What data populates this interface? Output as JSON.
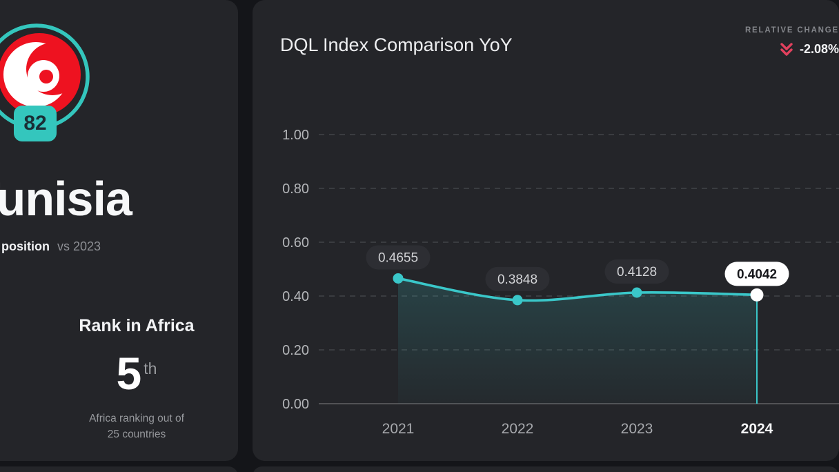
{
  "colors": {
    "page_bg": "#141519",
    "card_bg": "#242529",
    "teal_badge": "#34c6bd",
    "teal_line": "#3ac7c9",
    "red": "#ee1220",
    "crimson": "#e2415e",
    "white": "#ffffff",
    "grid": "rgba(255,255,255,0.14)",
    "axis_line": "rgba(255,255,255,0.28)",
    "tick_text": "#b4b6b9",
    "year_text": "#a7a9ad",
    "year_text_active": "#f4f5f6",
    "pill_bg": "#2d2e33",
    "pill_text": "#d3d4d7",
    "pill_active_bg": "#ffffff",
    "pill_active_text": "#17181c"
  },
  "sidebar": {
    "score_badge": "82",
    "country": "Tunisia",
    "position_label": "position",
    "position_context": "vs 2023",
    "rank": {
      "title": "Rank in Africa",
      "value": "5",
      "ordinal_suffix": "th",
      "caption_line1": "Africa ranking out of",
      "caption_line2": "25 countries"
    }
  },
  "chart_card": {
    "title": "DQL Index Comparison YoY",
    "relative_change_label": "RELATIVE CHANGE",
    "relative_change_value": "-2.08%",
    "relative_change_icon": "double-chevron-down-icon",
    "relative_change_direction": "down"
  },
  "chart_data": {
    "type": "line",
    "title": "DQL Index Comparison YoY",
    "categories": [
      "2021",
      "2022",
      "2023",
      "2024"
    ],
    "values": [
      0.4655,
      0.3848,
      0.4128,
      0.4042
    ],
    "labels": [
      "0.4655",
      "0.3848",
      "0.4128",
      "0.4042"
    ],
    "highlight_index": 3,
    "yticks": [
      1.0,
      0.8,
      0.6,
      0.4,
      0.2,
      0.0
    ],
    "ytick_labels": [
      "1.00",
      "0.80",
      "0.60",
      "0.40",
      "0.20",
      "0.00"
    ],
    "ylim": [
      0,
      1.0
    ],
    "grid": "horizontal-dashed",
    "legend": "none",
    "area_fill": true,
    "xlabel": "",
    "ylabel": ""
  }
}
